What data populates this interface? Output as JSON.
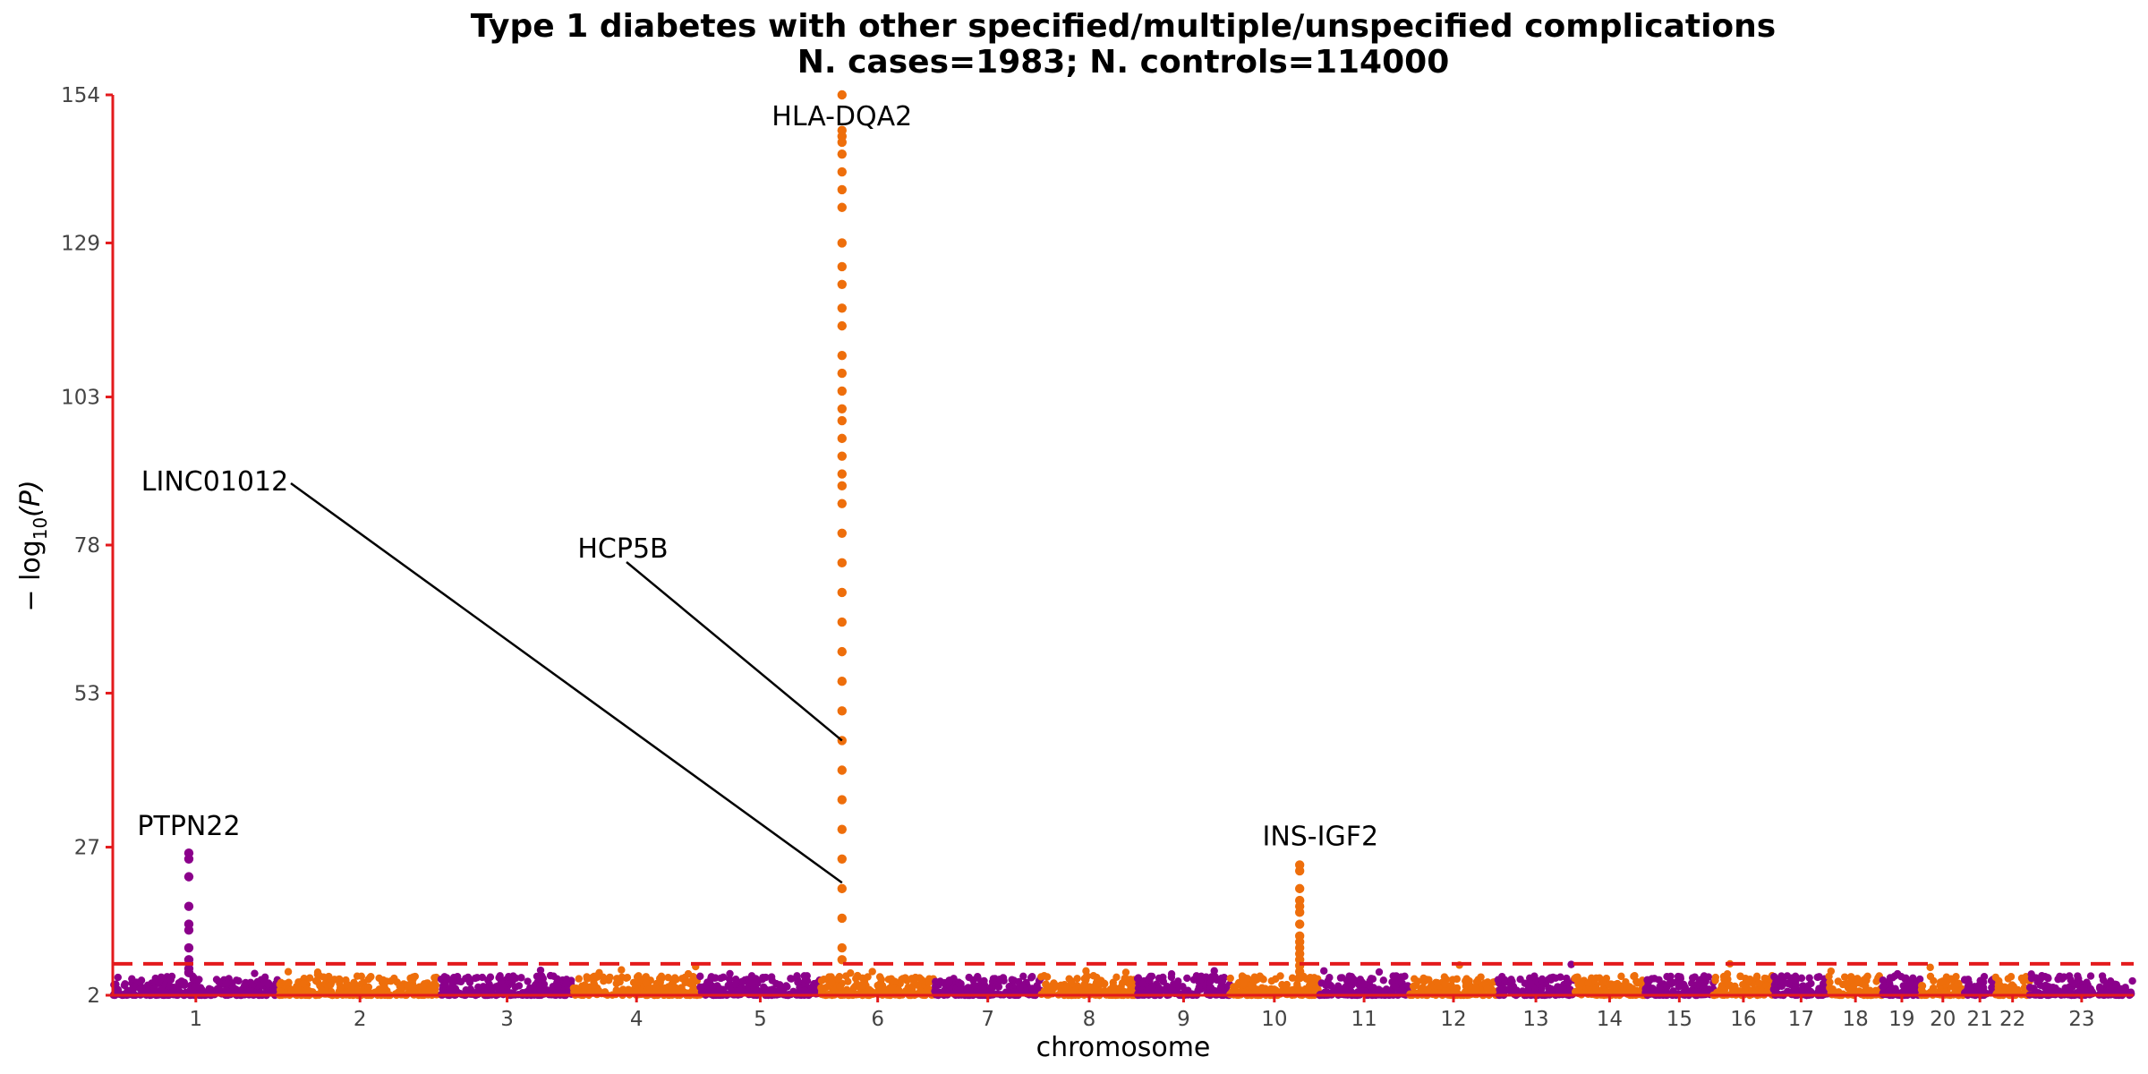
{
  "chart_data": {
    "type": "scatter",
    "title_line1": "Type 1 diabetes with other specified/multiple/unspecified complications",
    "title_line2": "N. cases=1983; N. controls=114000",
    "xlabel": "chromosome",
    "ylabel_prefix": "− log",
    "ylabel_sub": "10",
    "ylabel_suffix": "(P)",
    "ylim": [
      2,
      154
    ],
    "yticks": [
      2,
      27,
      53,
      78,
      103,
      129,
      154
    ],
    "significance_threshold": 7.3,
    "grid": false,
    "colors": {
      "odd": "#8b008b",
      "even": "#ee6e0b",
      "threshold": "#e31a1c",
      "axis": "#e31a1c"
    },
    "chromosomes": [
      "1",
      "2",
      "3",
      "4",
      "5",
      "6",
      "7",
      "8",
      "9",
      "10",
      "11",
      "12",
      "13",
      "14",
      "15",
      "16",
      "17",
      "18",
      "19",
      "20",
      "21",
      "22",
      "23"
    ],
    "chromosome_sizes": [
      249,
      243,
      198,
      190,
      181,
      171,
      159,
      145,
      138,
      134,
      135,
      133,
      114,
      107,
      102,
      90,
      83,
      80,
      59,
      64,
      47,
      51,
      156
    ],
    "peaks": [
      {
        "chrom": "1",
        "pos": 114,
        "values": [
          5.8,
          6.5,
          8,
          10,
          13,
          14,
          17,
          22,
          25,
          26
        ]
      },
      {
        "chrom": "6",
        "pos": 32,
        "values": [
          8,
          10,
          15,
          20,
          25,
          30,
          35,
          40,
          45,
          50,
          55,
          60,
          65,
          70,
          75,
          80,
          85,
          88,
          90,
          93,
          96,
          99,
          101,
          104,
          107,
          110,
          115,
          118,
          122,
          125,
          129,
          135,
          138,
          141,
          144,
          146,
          147,
          148,
          154
        ]
      },
      {
        "chrom": "10",
        "pos": 105,
        "values": [
          5,
          6,
          7,
          8,
          9,
          10,
          11,
          12,
          14,
          16,
          17,
          18,
          20,
          23,
          24
        ]
      }
    ],
    "annotations": [
      {
        "label": "PTPN22",
        "chrom": "1",
        "pos": 114,
        "value": 26
      },
      {
        "label": "LINC01012",
        "chrom": "6",
        "pos": 32,
        "value": 21
      },
      {
        "label": "HCP5B",
        "chrom": "6",
        "pos": 32,
        "value": 45
      },
      {
        "label": "HLA-DQA2",
        "chrom": "6",
        "pos": 32,
        "value": 154
      },
      {
        "label": "INS-IGF2",
        "chrom": "11",
        "pos": 2,
        "value": 24
      }
    ]
  }
}
